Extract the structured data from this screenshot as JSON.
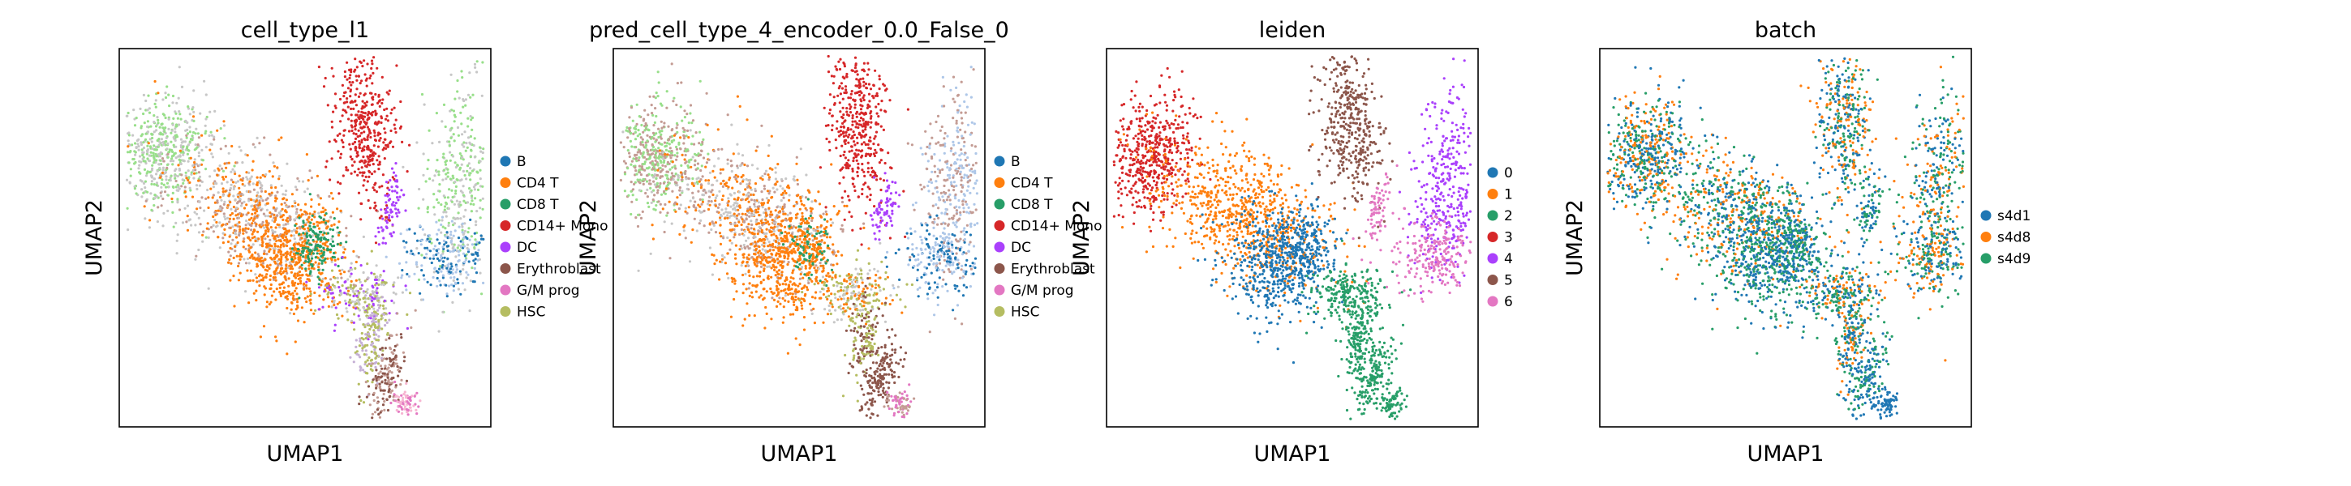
{
  "chart_data": [
    {
      "type": "scatter",
      "title": "cell_type_l1",
      "xlabel": "UMAP1",
      "ylabel": "UMAP2",
      "legend_position": "right",
      "grid": false,
      "series": [
        {
          "name": "B",
          "color": "#1f77b4"
        },
        {
          "name": "CD4 T",
          "color": "#ff7f0e"
        },
        {
          "name": "CD8 T",
          "color": "#279e68"
        },
        {
          "name": "CD14+ Mono",
          "color": "#d62728"
        },
        {
          "name": "DC",
          "color": "#aa40fc"
        },
        {
          "name": "Erythroblast",
          "color": "#8c564b"
        },
        {
          "name": "G/M prog",
          "color": "#e377c2"
        },
        {
          "name": "HSC",
          "color": "#b5bd61"
        }
      ]
    },
    {
      "type": "scatter",
      "title": "pred_cell_type_4_encoder_0.0_False_0",
      "xlabel": "UMAP1",
      "ylabel": "UMAP2",
      "legend_position": "right",
      "grid": false,
      "series": [
        {
          "name": "B",
          "color": "#1f77b4"
        },
        {
          "name": "CD4 T",
          "color": "#ff7f0e"
        },
        {
          "name": "CD8 T",
          "color": "#279e68"
        },
        {
          "name": "CD14+ Mono",
          "color": "#d62728"
        },
        {
          "name": "DC",
          "color": "#aa40fc"
        },
        {
          "name": "Erythroblast",
          "color": "#8c564b"
        },
        {
          "name": "G/M prog",
          "color": "#e377c2"
        },
        {
          "name": "HSC",
          "color": "#b5bd61"
        }
      ]
    },
    {
      "type": "scatter",
      "title": "leiden",
      "xlabel": "UMAP1",
      "ylabel": "UMAP2",
      "legend_position": "right",
      "grid": false,
      "series": [
        {
          "name": "0",
          "color": "#1f77b4"
        },
        {
          "name": "1",
          "color": "#ff7f0e"
        },
        {
          "name": "2",
          "color": "#279e68"
        },
        {
          "name": "3",
          "color": "#d62728"
        },
        {
          "name": "4",
          "color": "#aa40fc"
        },
        {
          "name": "5",
          "color": "#8c564b"
        },
        {
          "name": "6",
          "color": "#e377c2"
        }
      ]
    },
    {
      "type": "scatter",
      "title": "batch",
      "xlabel": "UMAP1",
      "ylabel": "UMAP2",
      "legend_position": "right",
      "grid": false,
      "series": [
        {
          "name": "s4d1",
          "color": "#1f77b4"
        },
        {
          "name": "s4d8",
          "color": "#ff7f0e"
        },
        {
          "name": "s4d9",
          "color": "#279e68"
        }
      ]
    }
  ]
}
